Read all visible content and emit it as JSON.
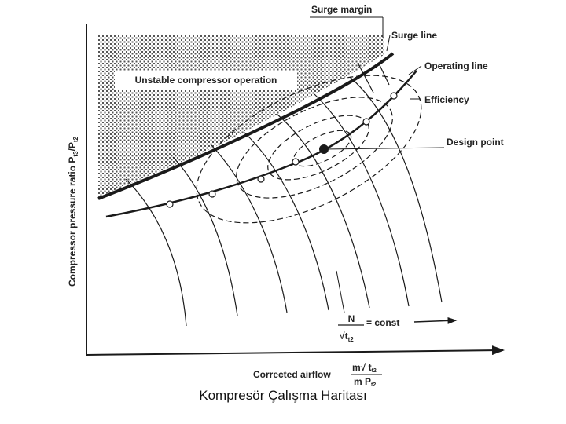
{
  "diagram": {
    "labels": {
      "surge_margin": "Surge margin",
      "surge_line": "Surge line",
      "operating_line": "Operating line",
      "efficiency": "Efficiency",
      "design_point": "Design point",
      "unstable_region": "Unstable compressor operation",
      "y_axis": "Compressor pressure ratio P",
      "y_axis_sub1": "t3",
      "y_axis_slash": "/P",
      "y_axis_sub2": "t2",
      "x_axis": "Corrected airflow",
      "x_frac_num": "m√ t",
      "x_frac_num_sub": "t2",
      "x_frac_den": "m P",
      "x_frac_den_sub": "t2",
      "speed_num": "N",
      "speed_den": "√t",
      "speed_den_sub": "t2",
      "speed_eq": "= const"
    },
    "colors": {
      "ink": "#1a1a1a",
      "hatch": "#555555"
    }
  },
  "caption": "Kompresör Çalışma Haritası"
}
